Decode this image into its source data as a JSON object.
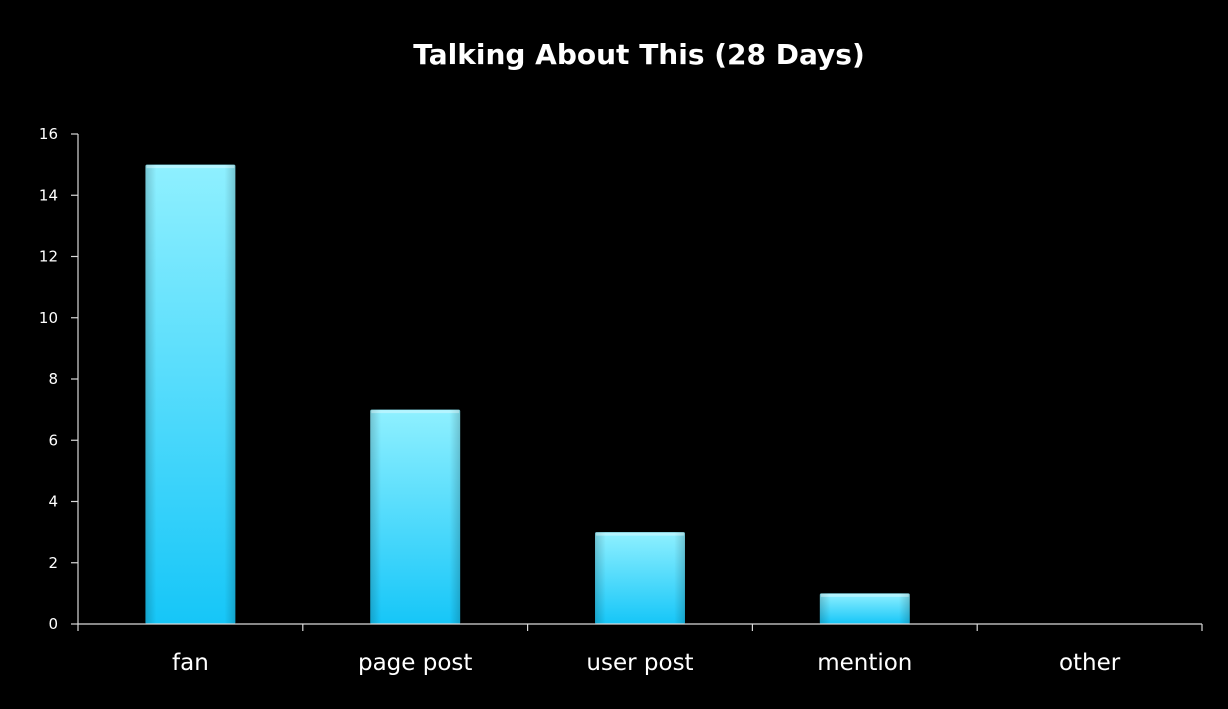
{
  "chart_data": {
    "type": "bar",
    "title": "Talking About This (28 Days)",
    "xlabel": "",
    "ylabel": "",
    "categories": [
      "fan",
      "page post",
      "user post",
      "mention",
      "other"
    ],
    "values": [
      15,
      7,
      3,
      1,
      0
    ],
    "ylim": [
      0,
      16
    ],
    "yticks": [
      "0",
      "2",
      "4",
      "6",
      "8",
      "10",
      "12",
      "14",
      "16"
    ],
    "grid": false,
    "legend": "none",
    "colors": {
      "background": "#000000",
      "bar_top": "#8ff0ff",
      "bar_bottom": "#16c6f8",
      "axis": "#d9d9d9",
      "text": "#ffffff"
    }
  }
}
